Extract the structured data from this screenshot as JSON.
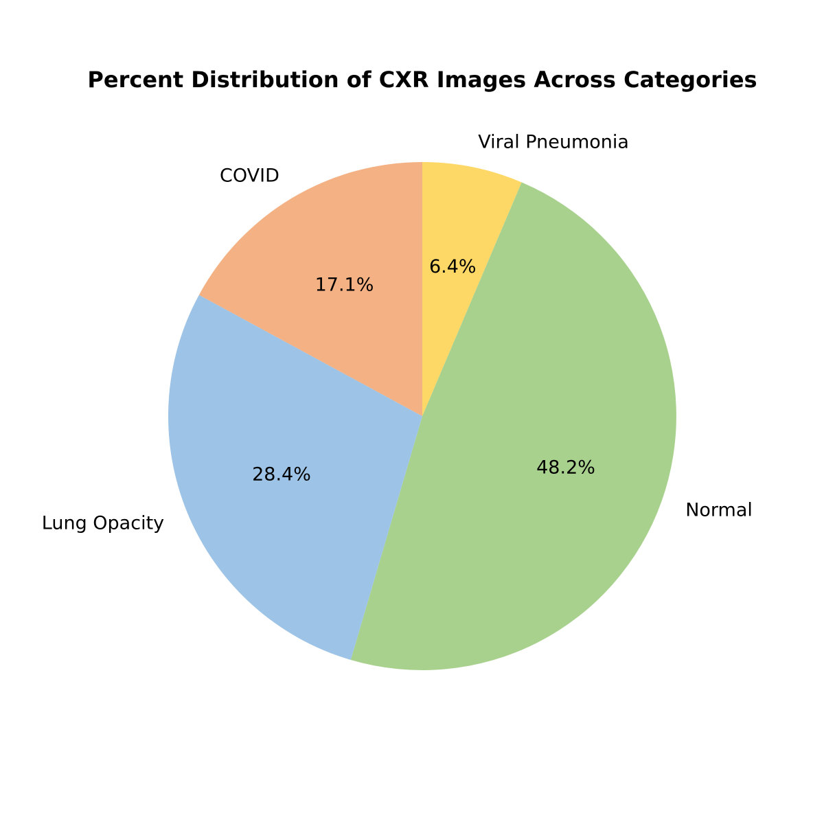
{
  "chart_data": {
    "type": "pie",
    "title": "Percent Distribution of CXR Images Across Categories",
    "slices": [
      {
        "label": "Viral Pneumonia",
        "value": 6.4,
        "pct_label": "6.4%",
        "color": "#FED866"
      },
      {
        "label": "Normal",
        "value": 48.2,
        "pct_label": "48.2%",
        "color": "#A9D18E"
      },
      {
        "label": "Lung Opacity",
        "value": 28.4,
        "pct_label": "28.4%",
        "color": "#9DC3E6"
      },
      {
        "label": "COVID",
        "value": 17.1,
        "pct_label": "17.1%",
        "color": "#F4B183"
      }
    ],
    "start_angle_deg": 90,
    "direction": "clockwise"
  }
}
